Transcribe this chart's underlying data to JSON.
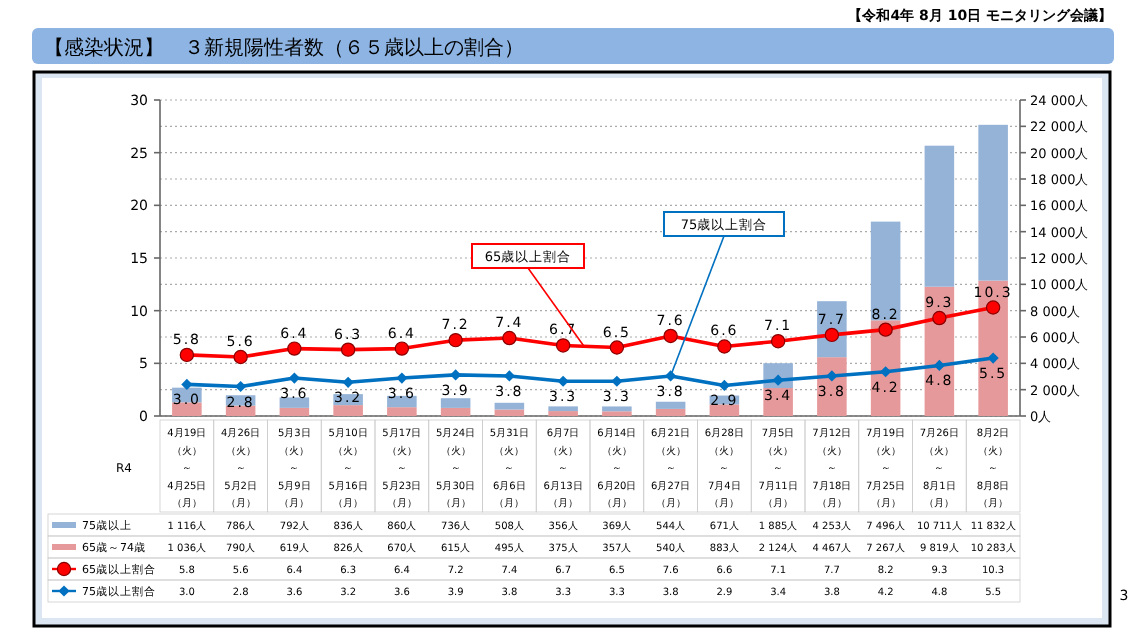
{
  "chart_data": {
    "type": "bar",
    "stacked": true,
    "title": "【感染状況】　３新規陽性者数（６５歳以上の割合）",
    "subtitle": "【令和4年 8月 10日 モニタリング会議】",
    "annotations": [
      "3"
    ],
    "categories": [
      "4月19日（火）～4月25日（月）",
      "4月26日（火）～5月2日（月）",
      "5月3日（火）～5月9日（月）",
      "5月10日（火）～5月16日（月）",
      "5月17日（火）～5月23日（月）",
      "5月24日（火）～5月30日（月）",
      "5月31日（火）～6月6日（月）",
      "6月7日（火）～6月13日（月）",
      "6月14日（火）～6月20日（月）",
      "6月21日（火）～6月27日（月）",
      "6月28日（火）～7月4日（月）",
      "7月5日（火）～7月11日（月）",
      "7月12日（火）～7月18日（月）",
      "7月19日（火）～7月25日（月）",
      "7月26日（火）～8月1日（月）",
      "8月2日（火）～8月8日（月）"
    ],
    "xlabel": "R4",
    "series": [
      {
        "name": "65歳～74歳",
        "axis": "y2",
        "color": "#e6999a",
        "values": [
          1036,
          790,
          619,
          826,
          670,
          615,
          495,
          375,
          357,
          540,
          883,
          2124,
          4467,
          7267,
          9819,
          10283
        ],
        "value_labels": [
          "1 036人",
          "790人",
          "619人",
          "826人",
          "670人",
          "615人",
          "495人",
          "375人",
          "357人",
          "540人",
          "883人",
          "2 124人",
          "4 467人",
          "7 267人",
          "9 819人",
          "10 283人"
        ]
      },
      {
        "name": "75歳以上",
        "axis": "y2",
        "color": "#95b3d7",
        "values": [
          1116,
          786,
          792,
          836,
          860,
          736,
          508,
          356,
          369,
          544,
          671,
          1885,
          4253,
          7496,
          10711,
          11832
        ],
        "value_labels": [
          "1 116人",
          "786人",
          "792人",
          "836人",
          "860人",
          "736人",
          "508人",
          "356人",
          "369人",
          "544人",
          "671人",
          "1 885人",
          "4 253人",
          "7 496人",
          "10 711人",
          "11 832人"
        ]
      },
      {
        "name": "65歳以上割合",
        "type": "line",
        "color": "#ff0000",
        "marker": "circle",
        "values": [
          5.8,
          5.6,
          6.4,
          6.3,
          6.4,
          7.2,
          7.4,
          6.7,
          6.5,
          7.6,
          6.6,
          7.1,
          7.7,
          8.2,
          9.3,
          10.3
        ],
        "value_labels": [
          "5.8",
          "5.6",
          "6.4",
          "6.3",
          "6.4",
          "7.2",
          "7.4",
          "6.7",
          "6.5",
          "7.6",
          "6.6",
          "7.1",
          "7.7",
          "8.2",
          "9.3",
          "10.3"
        ]
      },
      {
        "name": "75歳以上割合",
        "type": "line",
        "color": "#0070c0",
        "marker": "diamond",
        "values": [
          3.0,
          2.8,
          3.6,
          3.2,
          3.6,
          3.9,
          3.8,
          3.3,
          3.3,
          3.8,
          2.9,
          3.4,
          3.8,
          4.2,
          4.8,
          5.5
        ],
        "value_labels": [
          "3.0",
          "2.8",
          "3.6",
          "3.2",
          "3.6",
          "3.9",
          "3.8",
          "3.3",
          "3.3",
          "3.8",
          "2.9",
          "3.4",
          "3.8",
          "4.2",
          "4.8",
          "5.5"
        ]
      }
    ],
    "ylim": [
      0,
      30
    ],
    "yticks": [
      0,
      5,
      10,
      15,
      20,
      25,
      30
    ],
    "y2lim": [
      0,
      24000
    ],
    "y2ticks": [
      {
        "value": 0,
        "label": "0人"
      },
      {
        "value": 2000,
        "label": "2 000人"
      },
      {
        "value": 4000,
        "label": "4 000人"
      },
      {
        "value": 6000,
        "label": "6 000人"
      },
      {
        "value": 8000,
        "label": "8 000人"
      },
      {
        "value": 10000,
        "label": "10 000人"
      },
      {
        "value": 12000,
        "label": "12 000人"
      },
      {
        "value": 14000,
        "label": "14 000人"
      },
      {
        "value": 16000,
        "label": "16 000人"
      },
      {
        "value": 18000,
        "label": "18 000人"
      },
      {
        "value": 20000,
        "label": "20 000人"
      },
      {
        "value": 22000,
        "label": "22 000人"
      },
      {
        "value": 24000,
        "label": "24 000人"
      }
    ],
    "grid": "y2",
    "legend": "bottom"
  }
}
